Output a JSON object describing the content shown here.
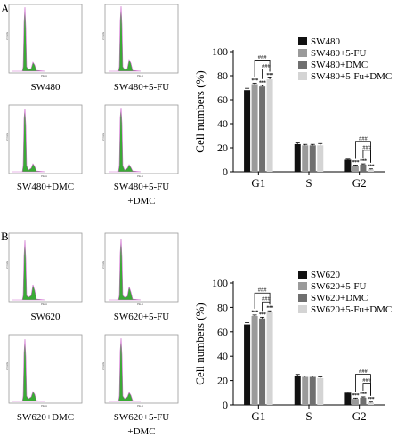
{
  "panels": [
    {
      "letter": "A",
      "hist_axis_labels": {
        "x": "PE-A",
        "y": "# Cells"
      },
      "histograms": [
        {
          "caption": [
            "SW480"
          ]
        },
        {
          "caption": [
            "SW480+5-FU"
          ]
        },
        {
          "caption": [
            "SW480+DMC"
          ]
        },
        {
          "caption": [
            "SW480+5-FU",
            "+DMC"
          ]
        }
      ]
    },
    {
      "letter": "B",
      "hist_axis_labels": {
        "x": "PE-A",
        "y": "# Cells"
      },
      "histograms": [
        {
          "caption": [
            "SW620"
          ]
        },
        {
          "caption": [
            "SW620+5-FU"
          ]
        },
        {
          "caption": [
            "SW620+DMC"
          ]
        },
        {
          "caption": [
            "SW620+5-FU",
            "+DMC"
          ]
        }
      ]
    }
  ],
  "chart_data": [
    {
      "type": "bar",
      "title": "",
      "xlabel": "",
      "ylabel": "Cell numbers (%)",
      "ylim": [
        0,
        100
      ],
      "yticks": [
        0,
        20,
        40,
        60,
        80,
        100
      ],
      "categories": [
        "G1",
        "S",
        "G2"
      ],
      "legend_position": "top-right",
      "colors": [
        "#111111",
        "#9a9a9a",
        "#6f6f6f",
        "#d4d4d4"
      ],
      "series": [
        {
          "name": "SW480",
          "values": [
            68,
            23,
            10
          ],
          "errors": [
            1.5,
            1,
            0.5
          ]
        },
        {
          "name": "SW480+5-FU",
          "values": [
            73,
            22,
            5
          ],
          "errors": [
            0.8,
            0.8,
            0.6
          ]
        },
        {
          "name": "SW480+DMC",
          "values": [
            71,
            22,
            6
          ],
          "errors": [
            1,
            0.8,
            0.6
          ]
        },
        {
          "name": "SW480+5-Fu+DMC",
          "values": [
            77,
            22,
            2
          ],
          "errors": [
            1.2,
            1.5,
            0.4
          ]
        }
      ],
      "significance": {
        "stars": "***",
        "hash": "###",
        "stars_on": [
          [
            0,
            1
          ],
          [
            0,
            2
          ],
          [
            0,
            3
          ],
          [
            2,
            1
          ],
          [
            2,
            2
          ],
          [
            2,
            3
          ]
        ],
        "hash_brackets": [
          [
            0,
            1,
            3
          ],
          [
            0,
            2,
            3
          ],
          [
            2,
            1,
            3
          ],
          [
            2,
            2,
            3
          ]
        ]
      }
    },
    {
      "type": "bar",
      "title": "",
      "xlabel": "",
      "ylabel": "Cell numbers (%)",
      "ylim": [
        0,
        100
      ],
      "yticks": [
        0,
        20,
        40,
        60,
        80,
        100
      ],
      "categories": [
        "G1",
        "S",
        "G2"
      ],
      "legend_position": "top-right",
      "colors": [
        "#111111",
        "#9a9a9a",
        "#6f6f6f",
        "#d4d4d4"
      ],
      "series": [
        {
          "name": "SW620",
          "values": [
            66,
            24,
            10
          ],
          "errors": [
            1.5,
            1,
            0.5
          ]
        },
        {
          "name": "SW620+5-FU",
          "values": [
            73,
            23,
            5
          ],
          "errors": [
            0.8,
            0.8,
            0.6
          ]
        },
        {
          "name": "SW620+DMC",
          "values": [
            71,
            23,
            6
          ],
          "errors": [
            1,
            0.8,
            0.6
          ]
        },
        {
          "name": "SW620+5-Fu+DMC",
          "values": [
            76,
            22,
            2
          ],
          "errors": [
            1.2,
            1,
            0.4
          ]
        }
      ],
      "significance": {
        "stars": "***",
        "hash": "###",
        "stars_on": [
          [
            0,
            1
          ],
          [
            0,
            2
          ],
          [
            0,
            3
          ],
          [
            2,
            1
          ],
          [
            2,
            2
          ],
          [
            2,
            3
          ]
        ],
        "hash_brackets": [
          [
            0,
            1,
            3
          ],
          [
            0,
            2,
            3
          ],
          [
            2,
            1,
            3
          ],
          [
            2,
            2,
            3
          ]
        ]
      }
    }
  ]
}
